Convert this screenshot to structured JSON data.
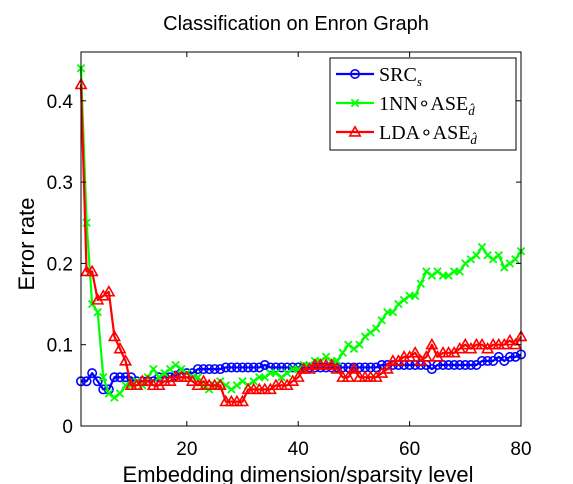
{
  "chart_data": {
    "type": "line",
    "title": "Classification on Enron Graph",
    "xlabel": "Embedding dimension/sparsity level",
    "ylabel": "Error rate",
    "xlim": [
      1,
      80
    ],
    "ylim": [
      0,
      0.46
    ],
    "xticks": [
      20,
      40,
      60,
      80
    ],
    "yticks": [
      0,
      0.1,
      0.2,
      0.3,
      0.4
    ],
    "xtick_labels": [
      "20",
      "40",
      "60",
      "80"
    ],
    "ytick_labels": [
      "0",
      "0.1",
      "0.2",
      "0.3",
      "0.4"
    ],
    "grid": false,
    "legend_position": "top-right",
    "series": [
      {
        "name": "SRC",
        "subscript": "s",
        "color": "#0000ff",
        "marker": "circle",
        "x": [
          1,
          2,
          3,
          4,
          5,
          6,
          7,
          8,
          9,
          10,
          11,
          12,
          13,
          14,
          15,
          16,
          17,
          18,
          19,
          20,
          21,
          22,
          23,
          24,
          25,
          26,
          27,
          28,
          29,
          30,
          31,
          32,
          33,
          34,
          35,
          36,
          37,
          38,
          39,
          40,
          41,
          42,
          43,
          44,
          45,
          46,
          47,
          48,
          49,
          50,
          51,
          52,
          53,
          54,
          55,
          56,
          57,
          58,
          59,
          60,
          61,
          62,
          63,
          64,
          65,
          66,
          67,
          68,
          69,
          70,
          71,
          72,
          73,
          74,
          75,
          76,
          77,
          78,
          79,
          80
        ],
        "values": [
          0.055,
          0.055,
          0.065,
          0.055,
          0.045,
          0.045,
          0.06,
          0.06,
          0.06,
          0.06,
          0.055,
          0.055,
          0.055,
          0.055,
          0.06,
          0.06,
          0.06,
          0.062,
          0.065,
          0.065,
          0.065,
          0.07,
          0.07,
          0.07,
          0.07,
          0.07,
          0.072,
          0.072,
          0.072,
          0.072,
          0.072,
          0.072,
          0.072,
          0.075,
          0.072,
          0.072,
          0.072,
          0.072,
          0.072,
          0.072,
          0.072,
          0.072,
          0.072,
          0.072,
          0.072,
          0.072,
          0.072,
          0.072,
          0.072,
          0.072,
          0.072,
          0.072,
          0.072,
          0.072,
          0.075,
          0.075,
          0.075,
          0.075,
          0.075,
          0.075,
          0.075,
          0.075,
          0.075,
          0.07,
          0.075,
          0.075,
          0.075,
          0.075,
          0.075,
          0.075,
          0.075,
          0.075,
          0.08,
          0.08,
          0.08,
          0.085,
          0.08,
          0.085,
          0.085,
          0.088
        ]
      },
      {
        "name": "1NN∘ASE",
        "subscript": "d̂",
        "color": "#00ff00",
        "marker": "x",
        "x": [
          1,
          2,
          3,
          4,
          5,
          6,
          7,
          8,
          9,
          10,
          11,
          12,
          13,
          14,
          15,
          16,
          17,
          18,
          19,
          20,
          21,
          22,
          23,
          24,
          25,
          26,
          27,
          28,
          29,
          30,
          31,
          32,
          33,
          34,
          35,
          36,
          37,
          38,
          39,
          40,
          41,
          42,
          43,
          44,
          45,
          46,
          47,
          48,
          49,
          50,
          51,
          52,
          53,
          54,
          55,
          56,
          57,
          58,
          59,
          60,
          61,
          62,
          63,
          64,
          65,
          66,
          67,
          68,
          69,
          70,
          71,
          72,
          73,
          74,
          75,
          76,
          77,
          78,
          79,
          80
        ],
        "values": [
          0.44,
          0.25,
          0.15,
          0.14,
          0.06,
          0.04,
          0.035,
          0.04,
          0.05,
          0.05,
          0.055,
          0.05,
          0.06,
          0.07,
          0.06,
          0.065,
          0.07,
          0.075,
          0.07,
          0.065,
          0.06,
          0.06,
          0.05,
          0.045,
          0.05,
          0.055,
          0.05,
          0.045,
          0.05,
          0.055,
          0.05,
          0.055,
          0.06,
          0.06,
          0.065,
          0.065,
          0.06,
          0.065,
          0.07,
          0.07,
          0.075,
          0.075,
          0.08,
          0.08,
          0.085,
          0.08,
          0.08,
          0.09,
          0.1,
          0.095,
          0.1,
          0.11,
          0.115,
          0.12,
          0.13,
          0.14,
          0.14,
          0.15,
          0.155,
          0.16,
          0.16,
          0.175,
          0.19,
          0.185,
          0.19,
          0.185,
          0.185,
          0.19,
          0.19,
          0.2,
          0.205,
          0.21,
          0.22,
          0.21,
          0.205,
          0.21,
          0.195,
          0.2,
          0.205,
          0.215
        ]
      },
      {
        "name": "LDA∘ASE",
        "subscript": "d̂",
        "color": "#ff0000",
        "marker": "triangle",
        "x": [
          1,
          2,
          3,
          4,
          5,
          6,
          7,
          8,
          9,
          10,
          11,
          12,
          13,
          14,
          15,
          16,
          17,
          18,
          19,
          20,
          21,
          22,
          23,
          24,
          25,
          26,
          27,
          28,
          29,
          30,
          31,
          32,
          33,
          34,
          35,
          36,
          37,
          38,
          39,
          40,
          41,
          42,
          43,
          44,
          45,
          46,
          47,
          48,
          49,
          50,
          51,
          52,
          53,
          54,
          55,
          56,
          57,
          58,
          59,
          60,
          61,
          62,
          63,
          64,
          65,
          66,
          67,
          68,
          69,
          70,
          71,
          72,
          73,
          74,
          75,
          76,
          77,
          78,
          79,
          80
        ],
        "values": [
          0.42,
          0.19,
          0.19,
          0.155,
          0.16,
          0.165,
          0.11,
          0.095,
          0.08,
          0.05,
          0.05,
          0.055,
          0.055,
          0.05,
          0.05,
          0.055,
          0.055,
          0.06,
          0.06,
          0.06,
          0.055,
          0.05,
          0.055,
          0.05,
          0.05,
          0.05,
          0.03,
          0.03,
          0.03,
          0.03,
          0.045,
          0.045,
          0.045,
          0.045,
          0.045,
          0.05,
          0.05,
          0.05,
          0.055,
          0.06,
          0.07,
          0.07,
          0.075,
          0.075,
          0.075,
          0.075,
          0.07,
          0.06,
          0.06,
          0.07,
          0.06,
          0.06,
          0.06,
          0.06,
          0.065,
          0.07,
          0.08,
          0.08,
          0.085,
          0.085,
          0.09,
          0.08,
          0.085,
          0.1,
          0.085,
          0.09,
          0.09,
          0.09,
          0.095,
          0.1,
          0.095,
          0.1,
          0.1,
          0.095,
          0.1,
          0.1,
          0.1,
          0.105,
          0.1,
          0.11
        ]
      }
    ]
  }
}
